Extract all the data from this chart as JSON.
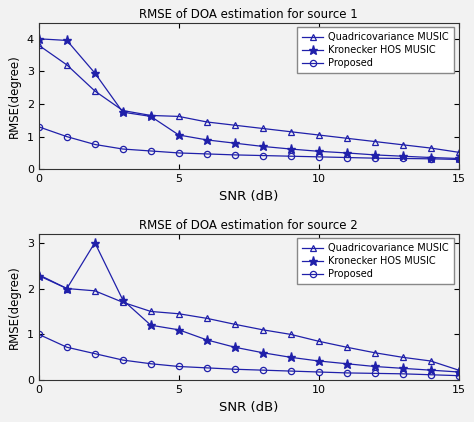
{
  "snr": [
    0,
    1,
    2,
    3,
    4,
    5,
    6,
    7,
    8,
    9,
    10,
    11,
    12,
    13,
    14,
    15
  ],
  "source1": {
    "quad_music": [
      3.8,
      3.2,
      2.4,
      1.8,
      1.65,
      1.62,
      1.45,
      1.35,
      1.25,
      1.15,
      1.05,
      0.95,
      0.85,
      0.75,
      0.65,
      0.52
    ],
    "kronecker_hos": [
      4.0,
      3.95,
      2.95,
      1.75,
      1.62,
      1.05,
      0.9,
      0.8,
      0.7,
      0.62,
      0.55,
      0.5,
      0.44,
      0.4,
      0.36,
      0.33
    ],
    "proposed": [
      1.3,
      1.0,
      0.76,
      0.62,
      0.56,
      0.5,
      0.47,
      0.44,
      0.42,
      0.4,
      0.38,
      0.36,
      0.34,
      0.33,
      0.32,
      0.3
    ]
  },
  "source2": {
    "quad_music": [
      2.3,
      2.0,
      1.95,
      1.7,
      1.5,
      1.45,
      1.35,
      1.22,
      1.1,
      1.0,
      0.85,
      0.72,
      0.6,
      0.5,
      0.42,
      0.22
    ],
    "kronecker_hos": [
      2.28,
      2.0,
      3.0,
      1.75,
      1.2,
      1.1,
      0.88,
      0.72,
      0.6,
      0.5,
      0.42,
      0.36,
      0.3,
      0.26,
      0.22,
      0.18
    ],
    "proposed": [
      1.0,
      0.72,
      0.58,
      0.44,
      0.36,
      0.3,
      0.27,
      0.24,
      0.22,
      0.2,
      0.18,
      0.16,
      0.15,
      0.14,
      0.12,
      0.1
    ]
  },
  "color": "#2020AA",
  "title1": "RMSE of DOA estimation for source 1",
  "title2": "RMSE of DOA estimation for source 2",
  "xlabel": "SNR (dB)",
  "ylabel": "RMSE(degree)",
  "legend_labels": [
    "Quadricovariance MUSIC",
    "Kronecker HOS MUSIC",
    "Proposed"
  ],
  "xlim": [
    0,
    15
  ],
  "ylim1": [
    0,
    4.5
  ],
  "ylim2": [
    0,
    3.2
  ],
  "yticks1": [
    0,
    1,
    2,
    3,
    4
  ],
  "yticks2": [
    0,
    1,
    2,
    3
  ],
  "xticks": [
    0,
    5,
    10,
    15
  ],
  "bg_color": "#f2f2f2"
}
